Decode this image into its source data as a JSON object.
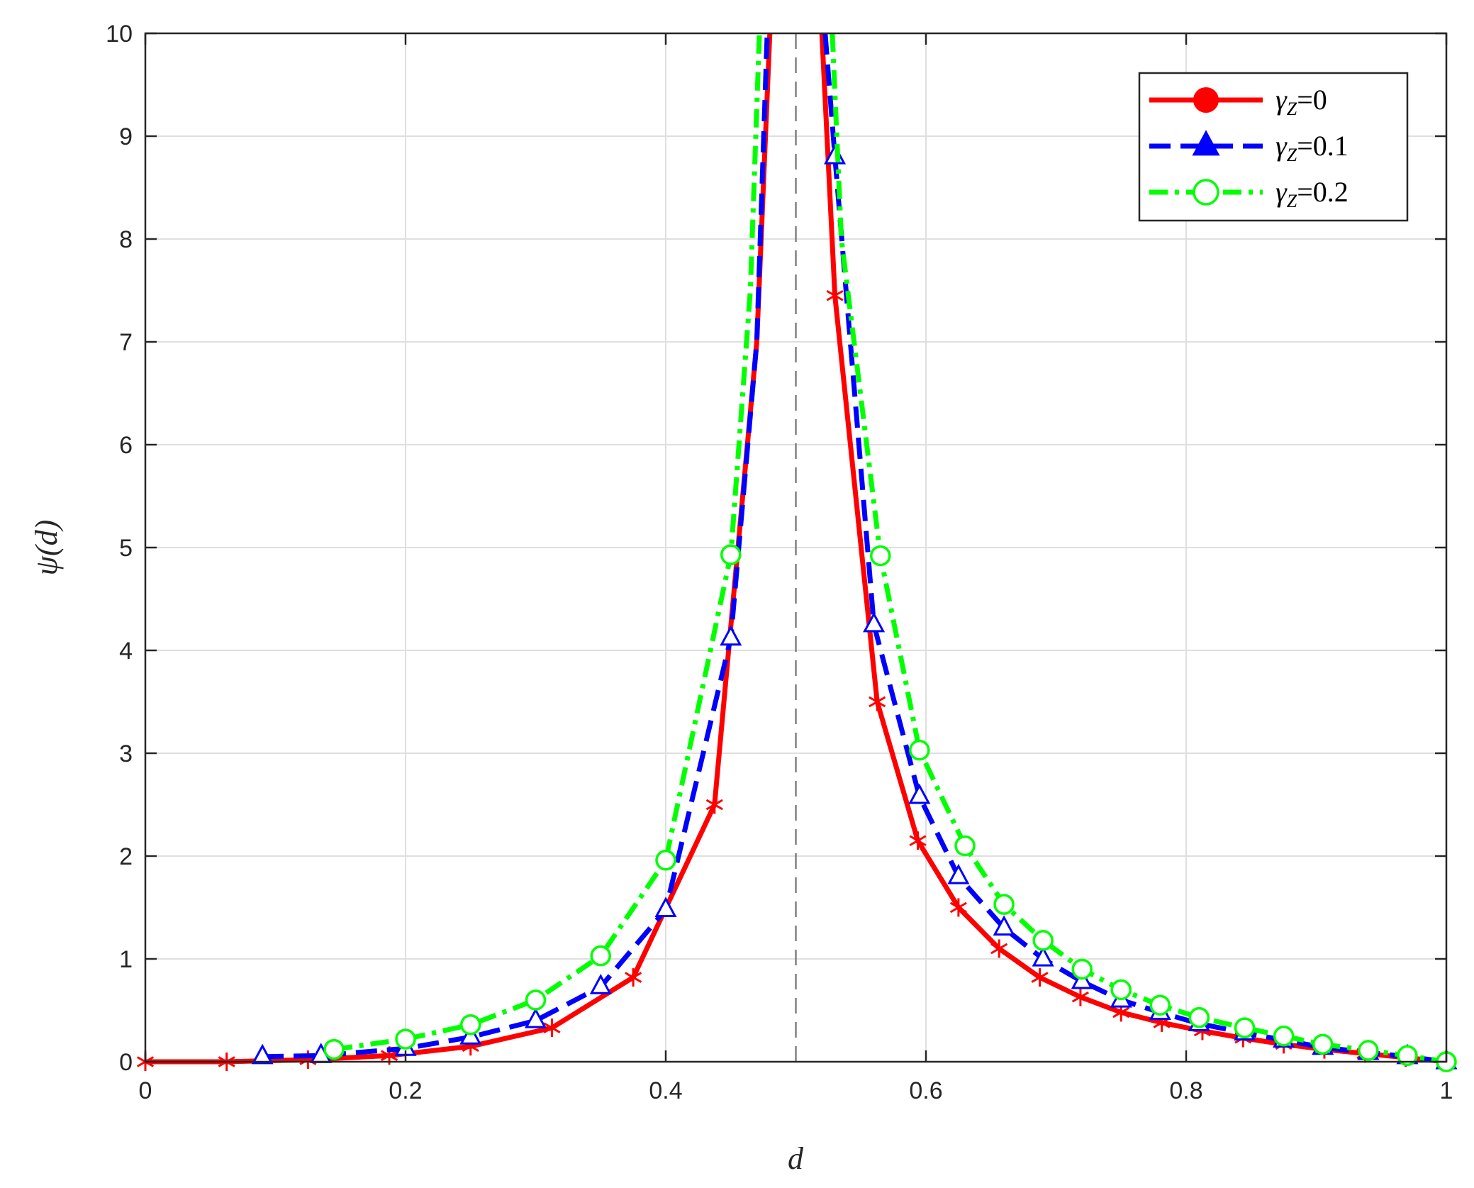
{
  "chart_data": {
    "type": "line",
    "xlabel": "d",
    "ylabel": "ψ(d)",
    "xlim": [
      0,
      1
    ],
    "ylim": [
      0,
      10
    ],
    "x_ticks": [
      "0",
      "0.2",
      "0.4",
      "0.6",
      "0.8",
      "1"
    ],
    "y_ticks": [
      "0",
      "1",
      "2",
      "3",
      "4",
      "5",
      "6",
      "7",
      "8",
      "9",
      "10"
    ],
    "grid": true,
    "legend_position": "top-right",
    "reference_line": {
      "x": 0.5,
      "style": "dashed",
      "color": "#808080"
    },
    "series": [
      {
        "name": "γZ=0",
        "legend_gamma": "γ",
        "legend_sub": "Z",
        "legend_value": "=0",
        "color": "#ff0000",
        "line_style": "solid",
        "legend_marker": "filled-circle",
        "plot_marker": "asterisk",
        "x": [
          0,
          0.0625,
          0.125,
          0.1875,
          0.25,
          0.3125,
          0.375,
          0.4375,
          0.47,
          0.48,
          0.52,
          0.53,
          0.5625,
          0.59375,
          0.625,
          0.65625,
          0.6875,
          0.71875,
          0.75,
          0.78125,
          0.8125,
          0.84375,
          0.875,
          0.90625,
          0.9375,
          0.96875,
          1.0
        ],
        "y": [
          0,
          0,
          0.02,
          0.06,
          0.15,
          0.33,
          0.82,
          2.5,
          7.0,
          10,
          10,
          7.45,
          3.5,
          2.15,
          1.5,
          1.1,
          0.82,
          0.63,
          0.48,
          0.38,
          0.3,
          0.23,
          0.17,
          0.12,
          0.08,
          0.04,
          0
        ],
        "marker_x": [
          0,
          0.0625,
          0.125,
          0.1875,
          0.25,
          0.3125,
          0.375,
          0.4375,
          0.53,
          0.5625,
          0.59375,
          0.625,
          0.65625,
          0.6875,
          0.71875,
          0.75,
          0.78125,
          0.8125,
          0.84375,
          0.875,
          0.90625,
          0.9375,
          0.96875,
          1.0
        ],
        "marker_y": [
          0,
          0,
          0.02,
          0.06,
          0.15,
          0.33,
          0.82,
          2.5,
          7.45,
          3.5,
          2.15,
          1.5,
          1.1,
          0.82,
          0.63,
          0.48,
          0.38,
          0.3,
          0.23,
          0.17,
          0.12,
          0.08,
          0.04,
          0
        ]
      },
      {
        "name": "γZ=0.1",
        "legend_gamma": "γ",
        "legend_sub": "Z",
        "legend_value": "=0.1",
        "color": "#0000ff",
        "line_style": "dashed",
        "legend_marker": "filled-triangle",
        "plot_marker": "triangle",
        "x": [
          0.09,
          0.135,
          0.2,
          0.25,
          0.3,
          0.35,
          0.4,
          0.45,
          0.47,
          0.478,
          0.5225,
          0.53,
          0.56,
          0.595,
          0.625,
          0.66,
          0.69,
          0.72,
          0.75,
          0.78,
          0.81,
          0.845,
          0.875,
          0.905,
          0.94,
          0.97,
          1.0
        ],
        "y": [
          0.05,
          0.06,
          0.13,
          0.24,
          0.4,
          0.73,
          1.48,
          4.12,
          7.0,
          10,
          10,
          8.8,
          4.25,
          2.58,
          1.8,
          1.3,
          1.0,
          0.78,
          0.6,
          0.48,
          0.37,
          0.28,
          0.21,
          0.14,
          0.09,
          0.05,
          0
        ],
        "marker_x": [
          0.09,
          0.135,
          0.2,
          0.25,
          0.3,
          0.35,
          0.4,
          0.45,
          0.53,
          0.56,
          0.595,
          0.625,
          0.66,
          0.69,
          0.72,
          0.75,
          0.78,
          0.81,
          0.845,
          0.875,
          0.905,
          0.94,
          0.97,
          1.0
        ],
        "marker_y": [
          0.05,
          0.06,
          0.13,
          0.24,
          0.4,
          0.73,
          1.48,
          4.12,
          8.8,
          4.25,
          2.58,
          1.8,
          1.3,
          1.0,
          0.78,
          0.6,
          0.48,
          0.37,
          0.28,
          0.21,
          0.14,
          0.09,
          0.05,
          0
        ]
      },
      {
        "name": "γZ=0.2",
        "legend_gamma": "γ",
        "legend_sub": "Z",
        "legend_value": "=0.2",
        "color": "#00ff00",
        "line_style": "dash-dot",
        "legend_marker": "open-circle",
        "plot_marker": "open-circle",
        "x": [
          0.145,
          0.2,
          0.25,
          0.3,
          0.35,
          0.4,
          0.45,
          0.465,
          0.472,
          0.528,
          0.535,
          0.565,
          0.595,
          0.63,
          0.66,
          0.69,
          0.72,
          0.75,
          0.78,
          0.81,
          0.845,
          0.875,
          0.905,
          0.94,
          0.97,
          1.0
        ],
        "y": [
          0.12,
          0.22,
          0.36,
          0.6,
          1.03,
          1.96,
          4.93,
          7.5,
          10,
          10,
          8.0,
          4.92,
          3.03,
          2.1,
          1.53,
          1.18,
          0.9,
          0.7,
          0.55,
          0.43,
          0.33,
          0.25,
          0.17,
          0.11,
          0.06,
          0
        ],
        "marker_x": [
          0.145,
          0.2,
          0.25,
          0.3,
          0.35,
          0.4,
          0.45,
          0.565,
          0.595,
          0.63,
          0.66,
          0.69,
          0.72,
          0.75,
          0.78,
          0.81,
          0.845,
          0.875,
          0.905,
          0.94,
          0.97,
          1.0
        ],
        "marker_y": [
          0.12,
          0.22,
          0.36,
          0.6,
          1.03,
          1.96,
          4.93,
          4.92,
          3.03,
          2.1,
          1.53,
          1.18,
          0.9,
          0.7,
          0.55,
          0.43,
          0.33,
          0.25,
          0.17,
          0.11,
          0.06,
          0
        ]
      }
    ]
  }
}
